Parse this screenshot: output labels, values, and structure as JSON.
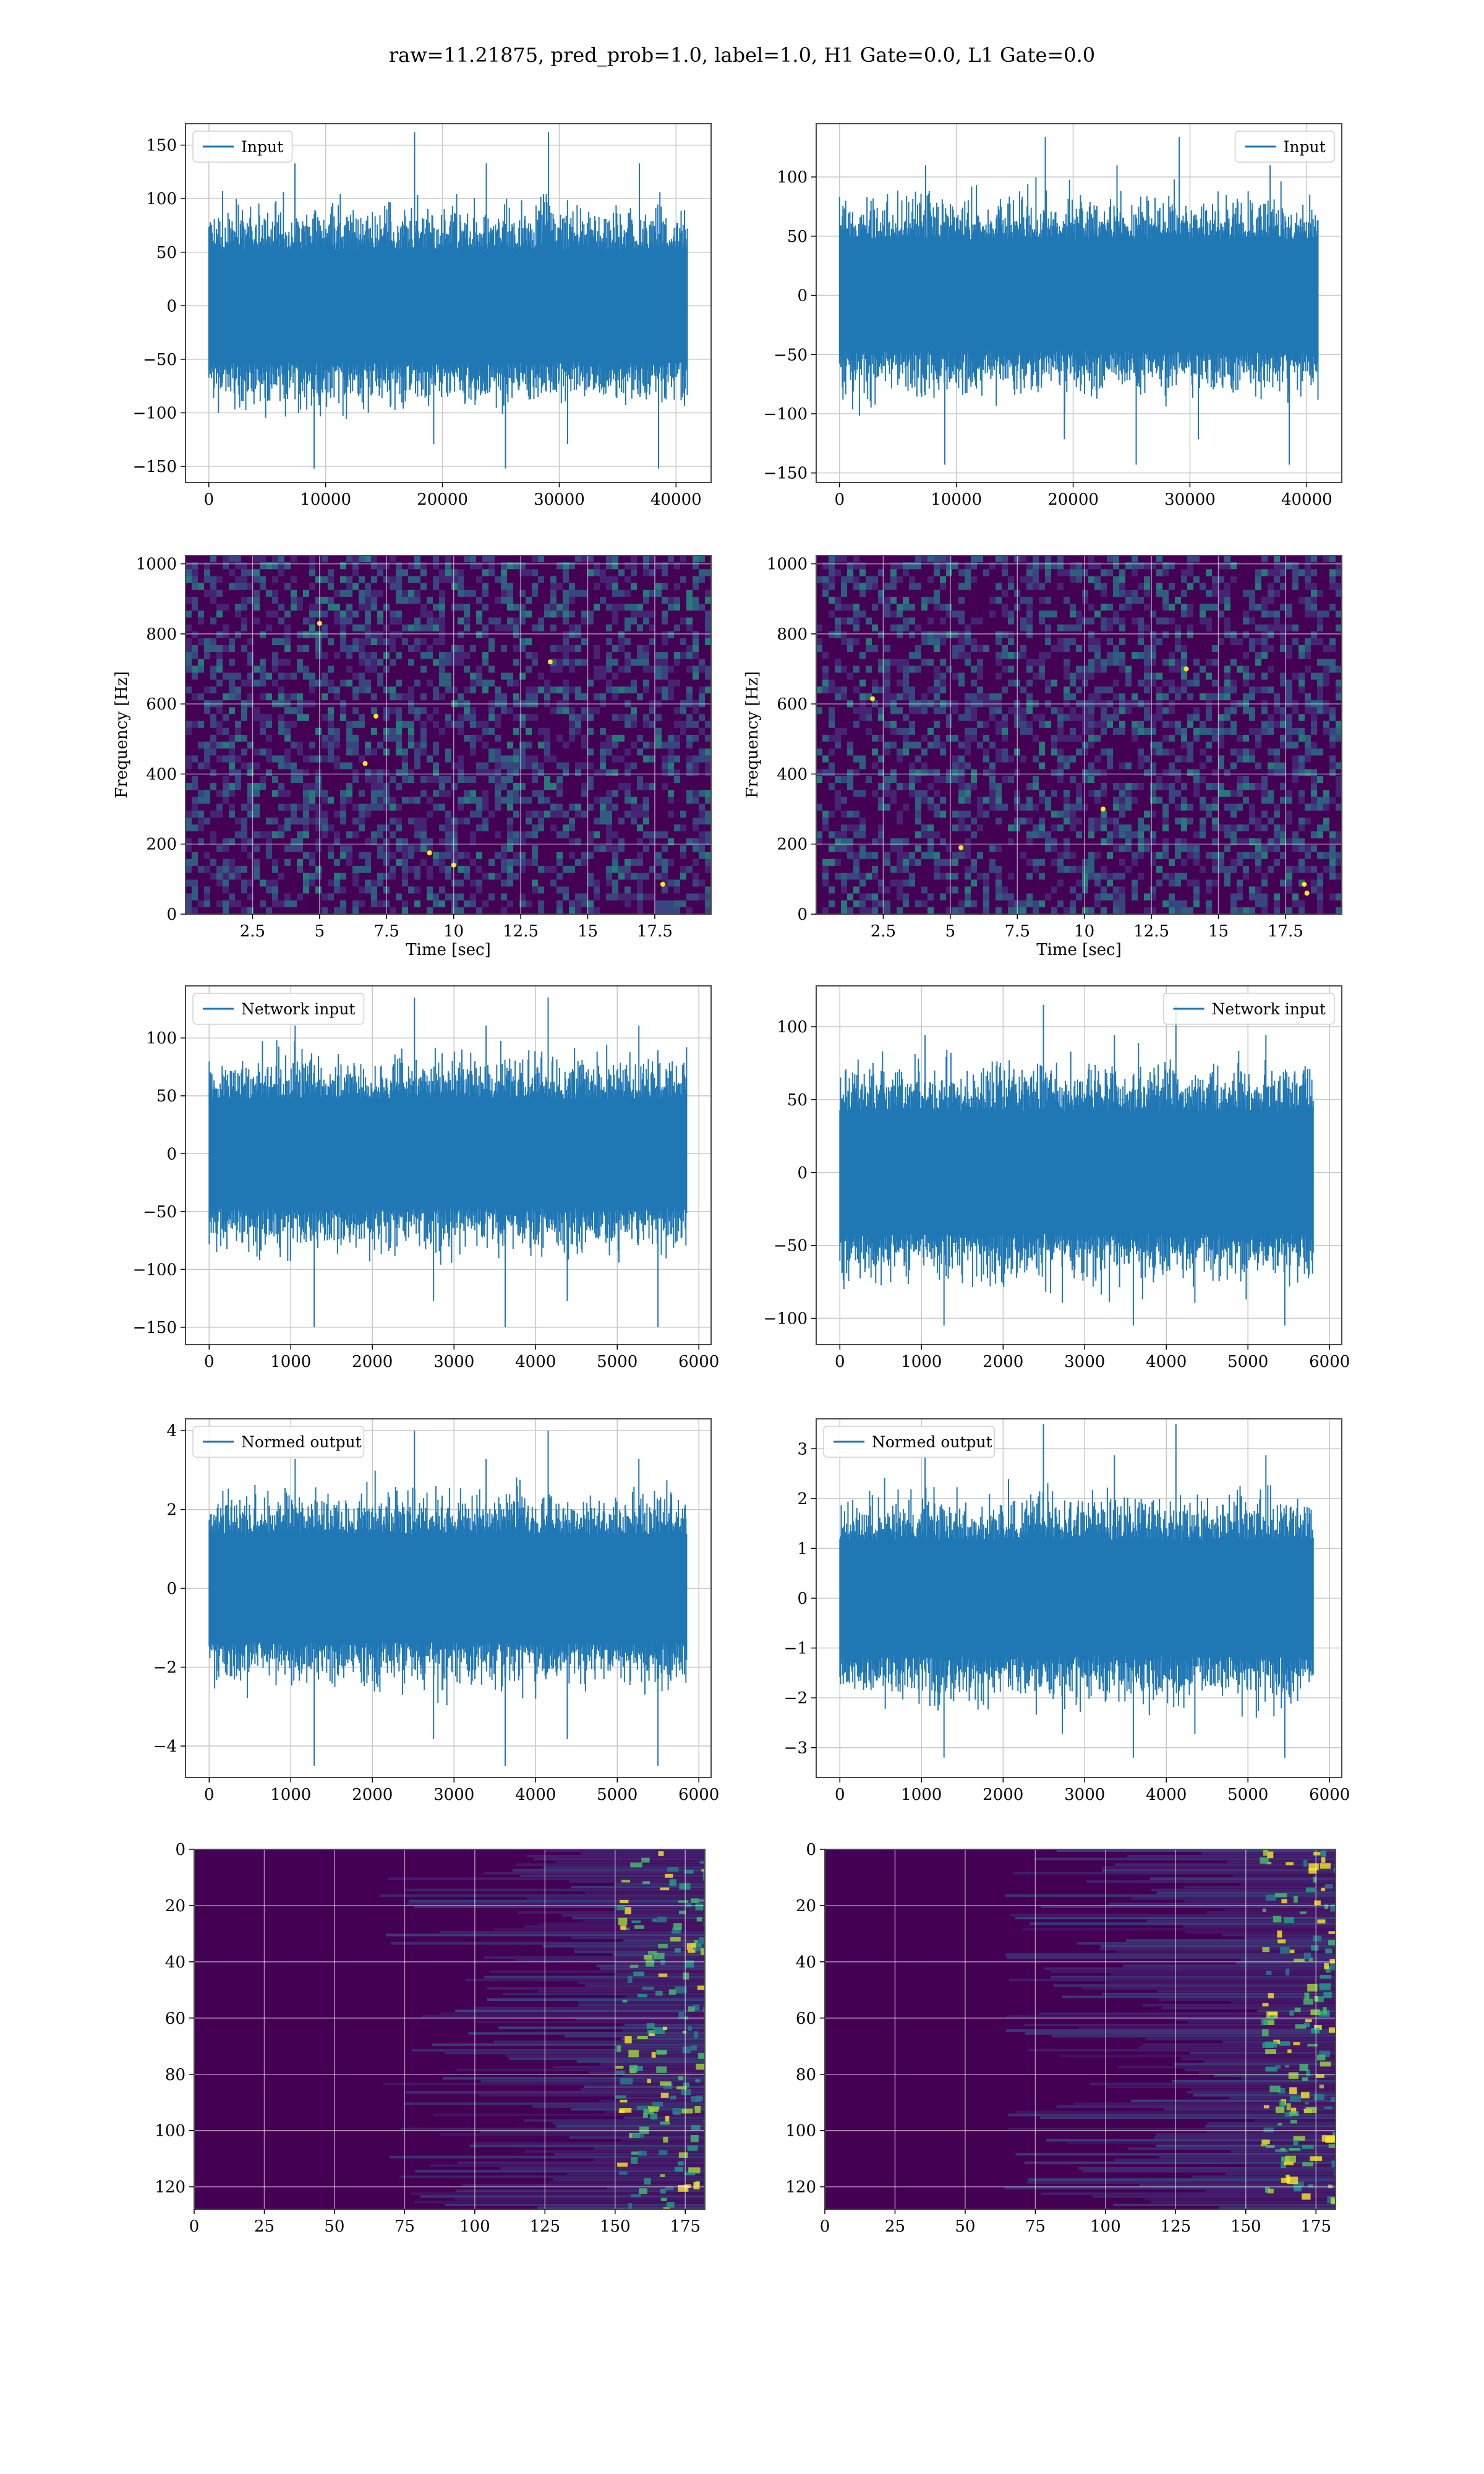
{
  "figure": {
    "title": "raw=11.21875, pred_prob=1.0, label=1.0, H1 Gate=0.0, L1 Gate=0.0"
  },
  "colors": {
    "line": "#1f77b4",
    "grid": "#c8c8c8",
    "viridis_dark": "#440154",
    "viridis_blue": "#31688e",
    "viridis_teal": "#21918c",
    "viridis_green": "#35b779",
    "viridis_yellow": "#fde725"
  },
  "chart_data": [
    {
      "id": "input-h1",
      "type": "line",
      "legend": "Input",
      "legend_pos": "upper-left",
      "xlim": [
        -2000,
        43000
      ],
      "ylim": [
        -165,
        170
      ],
      "xticks": [
        0,
        10000,
        20000,
        30000,
        40000
      ],
      "yticks": [
        -150,
        -100,
        -50,
        0,
        50,
        100,
        150
      ],
      "series": {
        "x_start": 0,
        "x_end": 40960,
        "core_amplitude": 50,
        "max_peak": 162,
        "min_peak": -152
      }
    },
    {
      "id": "input-l1",
      "type": "line",
      "legend": "Input",
      "legend_pos": "upper-right",
      "xlim": [
        -2000,
        43000
      ],
      "ylim": [
        -158,
        145
      ],
      "xticks": [
        0,
        10000,
        20000,
        30000,
        40000
      ],
      "yticks": [
        -150,
        -100,
        -50,
        0,
        50,
        100
      ],
      "series": {
        "x_start": 0,
        "x_end": 40960,
        "core_amplitude": 45,
        "max_peak": 134,
        "min_peak": -143
      }
    },
    {
      "id": "spec-h1",
      "type": "heatmap",
      "xlabel": "Time [sec]",
      "ylabel": "Frequency [Hz]",
      "xlim": [
        0,
        19.6
      ],
      "ylim": [
        0,
        1024
      ],
      "xticks": [
        2.5,
        5.0,
        7.5,
        10.0,
        12.5,
        15.0,
        17.5
      ],
      "yticks": [
        0,
        200,
        400,
        600,
        800,
        1000
      ],
      "hot_spots": [
        [
          7.1,
          565
        ],
        [
          6.7,
          430
        ],
        [
          9.1,
          175
        ],
        [
          10.0,
          140
        ],
        [
          17.8,
          85
        ],
        [
          5.0,
          830
        ],
        [
          13.6,
          720
        ]
      ]
    },
    {
      "id": "spec-l1",
      "type": "heatmap",
      "xlabel": "Time [sec]",
      "ylabel": "Frequency [Hz]",
      "xlim": [
        0,
        19.6
      ],
      "ylim": [
        0,
        1024
      ],
      "xticks": [
        2.5,
        5.0,
        7.5,
        10.0,
        12.5,
        15.0,
        17.5
      ],
      "yticks": [
        0,
        200,
        400,
        600,
        800,
        1000
      ],
      "hot_spots": [
        [
          18.2,
          85
        ],
        [
          18.3,
          60
        ],
        [
          13.8,
          700
        ],
        [
          10.7,
          300
        ],
        [
          5.4,
          190
        ],
        [
          2.1,
          615
        ]
      ]
    },
    {
      "id": "net-h1",
      "type": "line",
      "legend": "Network input",
      "legend_pos": "upper-left",
      "xlim": [
        -290,
        6150
      ],
      "ylim": [
        -165,
        145
      ],
      "xticks": [
        0,
        1000,
        2000,
        3000,
        4000,
        5000,
        6000
      ],
      "yticks": [
        -150,
        -100,
        -50,
        0,
        50,
        100
      ],
      "series": {
        "x_start": 0,
        "x_end": 5850,
        "core_amplitude": 45,
        "max_peak": 135,
        "min_peak": -150
      }
    },
    {
      "id": "net-l1",
      "type": "line",
      "legend": "Network input",
      "legend_pos": "upper-right",
      "xlim": [
        -290,
        6150
      ],
      "ylim": [
        -118,
        128
      ],
      "xticks": [
        0,
        1000,
        2000,
        3000,
        4000,
        5000,
        6000
      ],
      "yticks": [
        -100,
        -50,
        0,
        50,
        100
      ],
      "series": {
        "x_start": 0,
        "x_end": 5800,
        "core_amplitude": 40,
        "max_peak": 115,
        "min_peak": -105
      }
    },
    {
      "id": "norm-h1",
      "type": "line",
      "legend": "Normed output",
      "legend_pos": "upper-left",
      "xlim": [
        -290,
        6150
      ],
      "ylim": [
        -4.8,
        4.3
      ],
      "xticks": [
        0,
        1000,
        2000,
        3000,
        4000,
        5000,
        6000
      ],
      "yticks": [
        -4,
        -2,
        0,
        2,
        4
      ],
      "series": {
        "x_start": 0,
        "x_end": 5850,
        "core_amplitude": 1.3,
        "max_peak": 4.0,
        "min_peak": -4.5
      }
    },
    {
      "id": "norm-l1",
      "type": "line",
      "legend": "Normed output",
      "legend_pos": "upper-left",
      "xlim": [
        -290,
        6150
      ],
      "ylim": [
        -3.6,
        3.6
      ],
      "xticks": [
        0,
        1000,
        2000,
        3000,
        4000,
        5000,
        6000
      ],
      "yticks": [
        -3,
        -2,
        -1,
        0,
        1,
        2,
        3
      ],
      "series": {
        "x_start": 0,
        "x_end": 5800,
        "core_amplitude": 1.1,
        "max_peak": 3.5,
        "min_peak": -3.2
      }
    },
    {
      "id": "feat-h1",
      "type": "heatmap",
      "xlim": [
        0,
        182
      ],
      "ylim": [
        128,
        0
      ],
      "xticks": [
        0,
        25,
        50,
        75,
        100,
        125,
        150,
        175
      ],
      "yticks": [
        0,
        20,
        40,
        60,
        80,
        100,
        120
      ],
      "hot_cols": [
        150,
        182
      ]
    },
    {
      "id": "feat-l1",
      "type": "heatmap",
      "xlim": [
        0,
        182
      ],
      "ylim": [
        128,
        0
      ],
      "xticks": [
        0,
        25,
        50,
        75,
        100,
        125,
        150,
        175
      ],
      "yticks": [
        0,
        20,
        40,
        60,
        80,
        100,
        120
      ],
      "hot_cols": [
        155,
        182
      ]
    }
  ]
}
